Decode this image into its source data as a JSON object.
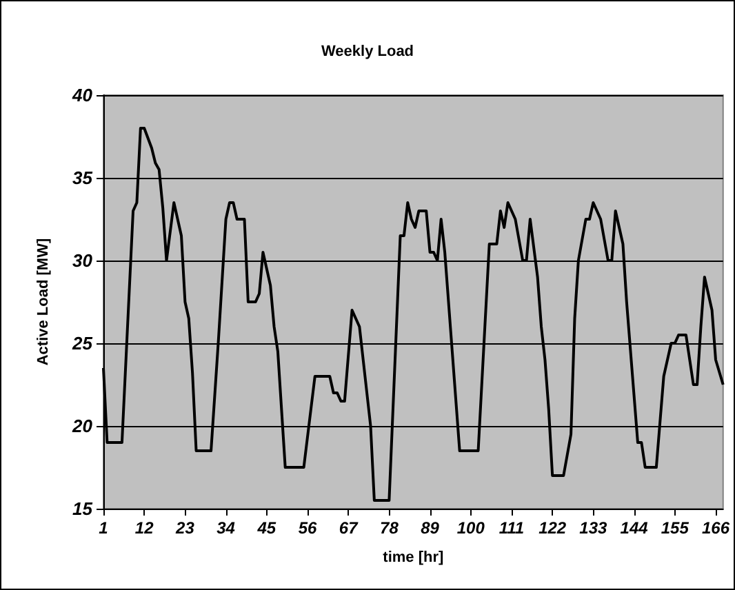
{
  "chart_data": {
    "type": "line",
    "title": "Weekly Load",
    "xlabel": "time [hr]",
    "ylabel": "Active Load [MW]",
    "x": [
      1,
      2,
      6,
      9,
      10,
      11,
      12,
      14,
      15,
      16,
      17,
      18,
      20,
      22,
      23,
      24,
      25,
      26,
      30,
      32,
      34,
      35,
      36,
      37,
      39,
      40,
      42,
      43,
      44,
      46,
      47,
      48,
      50,
      55,
      58,
      62,
      63,
      64,
      65,
      66,
      68,
      70,
      73,
      74,
      78,
      81,
      82,
      83,
      84,
      85,
      86,
      88,
      89,
      90,
      91,
      92,
      93,
      95,
      97,
      102,
      105,
      107,
      108,
      109,
      110,
      112,
      114,
      115,
      116,
      118,
      119,
      120,
      121,
      122,
      125,
      127,
      128,
      129,
      131,
      132,
      133,
      135,
      137,
      138,
      139,
      141,
      142,
      145,
      146,
      147,
      150,
      152,
      154,
      155,
      156,
      158,
      160,
      161,
      162,
      163,
      165,
      166,
      168
    ],
    "series": [
      {
        "color": "#000000",
        "values": [
          23.5,
          19,
          19,
          33,
          33.5,
          38,
          38,
          36.8,
          35.9,
          35.5,
          33.2,
          30,
          33.5,
          31.5,
          27.5,
          26.5,
          23.2,
          18.5,
          18.5,
          25.2,
          32.5,
          33.5,
          33.5,
          32.5,
          32.5,
          27.5,
          27.5,
          28,
          30.5,
          28.5,
          26,
          24.5,
          17.5,
          17.5,
          23,
          23,
          22,
          22,
          21.5,
          21.5,
          27,
          26,
          20,
          15.5,
          15.5,
          31.5,
          31.5,
          33.5,
          32.5,
          32,
          33,
          33,
          30.5,
          30.5,
          30,
          32.5,
          30.5,
          24.5,
          18.5,
          18.5,
          31,
          31,
          33,
          32,
          33.5,
          32.5,
          30,
          30,
          32.5,
          29,
          26,
          24,
          21,
          17,
          17,
          19.5,
          26.5,
          30,
          32.5,
          32.5,
          33.5,
          32.5,
          30,
          30,
          33,
          31,
          27.5,
          19,
          19,
          17.5,
          17.5,
          23,
          25,
          25,
          25.5,
          25.5,
          22.5,
          22.5,
          26,
          29,
          27,
          24,
          22.5
        ]
      }
    ],
    "xlim": [
      1,
      168
    ],
    "xticks": [
      1,
      12,
      23,
      34,
      45,
      56,
      67,
      78,
      89,
      100,
      111,
      122,
      133,
      144,
      155,
      166
    ],
    "ylim": [
      15,
      40
    ],
    "yticks": [
      15,
      20,
      25,
      30,
      35,
      40
    ],
    "grid": "y",
    "marker": "none",
    "line_style": "solid"
  }
}
